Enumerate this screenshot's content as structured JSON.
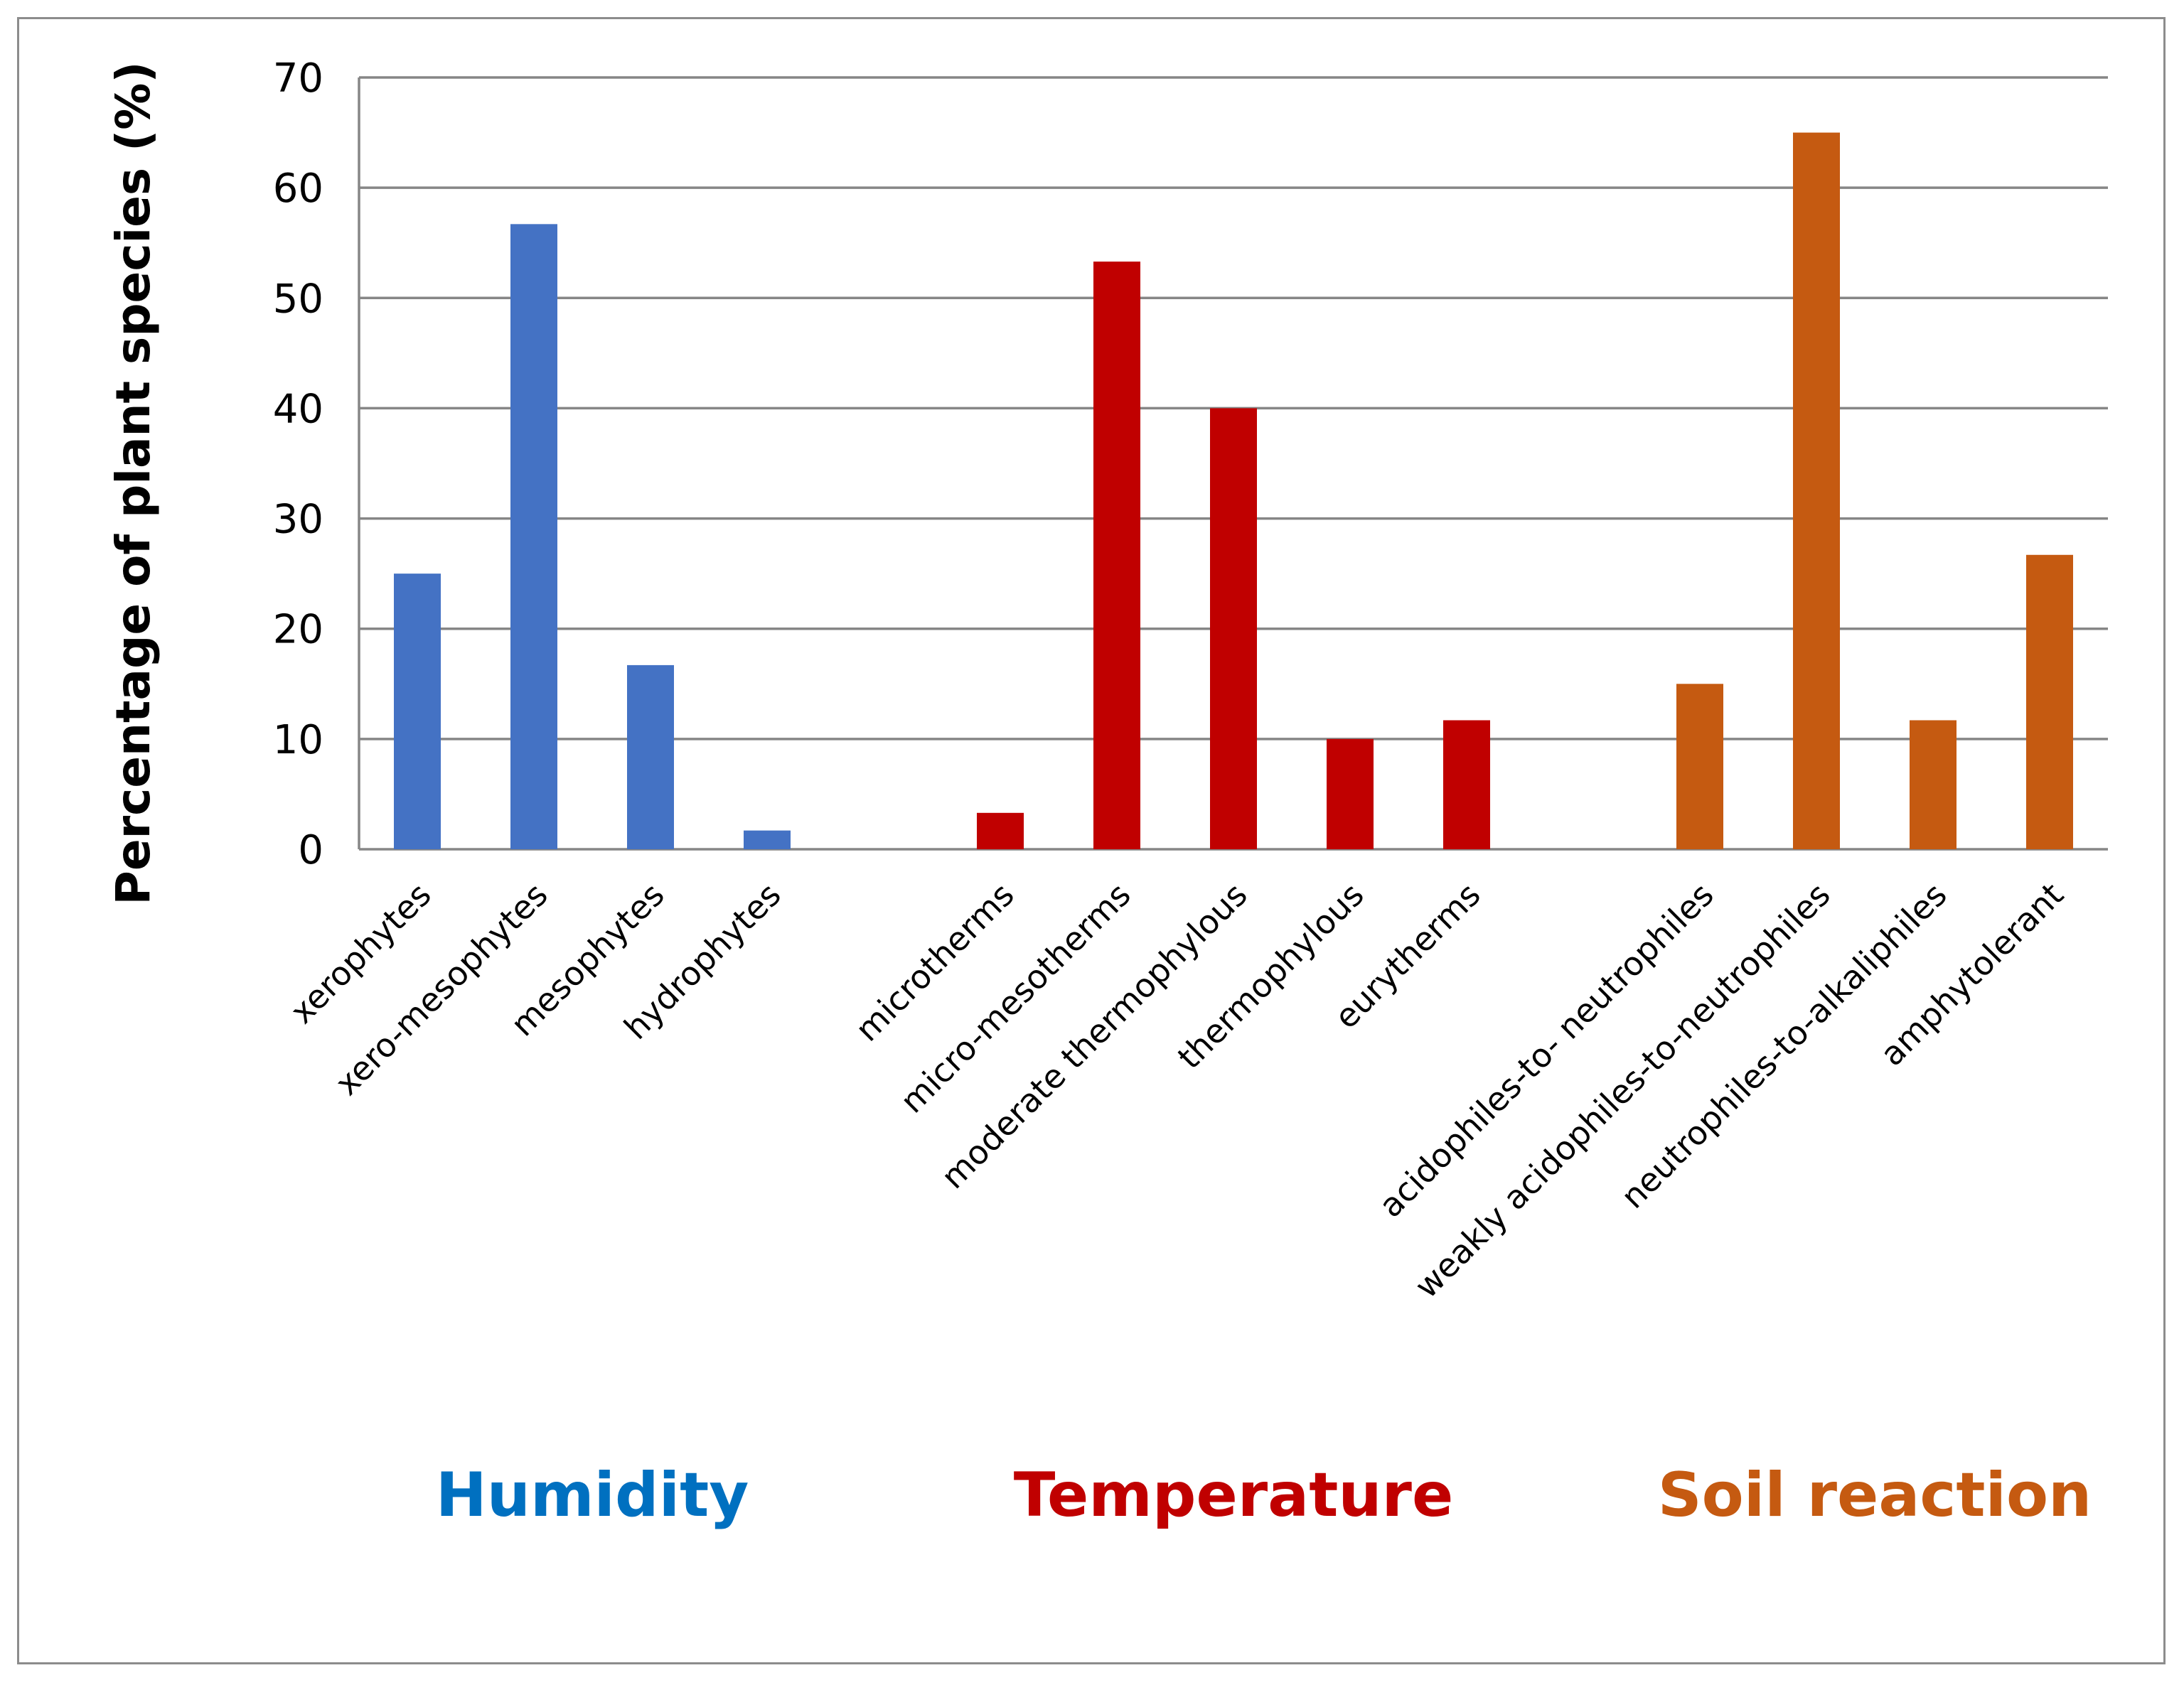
{
  "chart_data": {
    "type": "bar",
    "title": "",
    "xlabel": "",
    "ylabel": "Percentage of plant  species (%)",
    "ylim": [
      0,
      70
    ],
    "yticks": [
      0,
      10,
      20,
      30,
      40,
      50,
      60,
      70
    ],
    "grid": true,
    "categories": [
      "xerophytes",
      "xero-mesophytes",
      "mesophytes",
      "hydrophytes",
      "",
      "microtherms",
      "micro-mesotherms",
      "moderate thermophylous",
      "thermophylous",
      "eurytherms",
      "",
      "acidophiles-to- neutrophiles",
      "weakly acidophiles-to-neutrophiles",
      "neutrophiles-to-alkaliphiles",
      "amphytolerant"
    ],
    "values": [
      25,
      56.7,
      16.7,
      1.7,
      null,
      3.3,
      53.3,
      40,
      10,
      11.7,
      null,
      15,
      65,
      11.7,
      26.7
    ],
    "groups": [
      {
        "name": "Humidity",
        "color": "#4472c4",
        "text_color": "#0070c0",
        "indices": [
          0,
          1,
          2,
          3
        ]
      },
      {
        "name": "Temperature",
        "color": "#c00000",
        "text_color": "#c00000",
        "indices": [
          5,
          6,
          7,
          8,
          9
        ]
      },
      {
        "name": "Soil reaction",
        "color": "#c55a11",
        "text_color": "#c55a11",
        "indices": [
          11,
          12,
          13,
          14
        ]
      }
    ]
  }
}
